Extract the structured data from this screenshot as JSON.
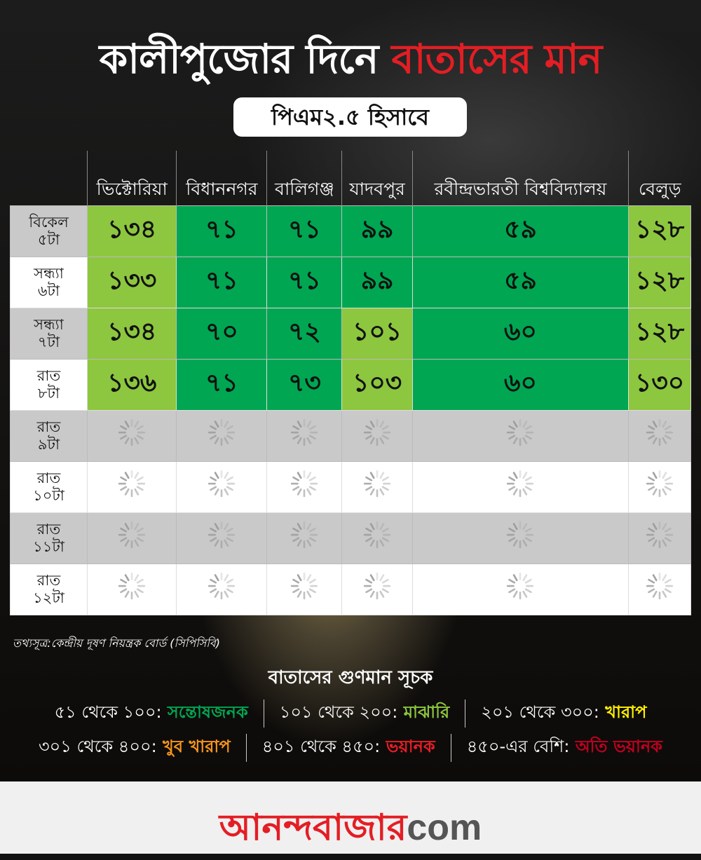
{
  "title": {
    "part1": "কালীপুজোর দিনে",
    "part2": "বাতাসের মান"
  },
  "subtitle": "পিএম২.৫ হিসাবে",
  "columns": [
    "ভিক্টোরিয়া",
    "বিধাননগর",
    "বালিগঞ্জ",
    "যাদবপুর",
    "রবীন্দ্রভারতী বিশ্ববিদ্যালয়",
    "বেলুড়"
  ],
  "colors": {
    "light_green": "#8dc63f",
    "dark_green": "#00a651",
    "title_red": "#e31e24"
  },
  "rows": [
    {
      "label": [
        "বিকেল",
        "৫টা"
      ],
      "values": [
        "১৩৪",
        "৭১",
        "৭১",
        "৯৯",
        "৫৯",
        "১২৮"
      ],
      "levels": [
        "L",
        "D",
        "D",
        "D",
        "D",
        "L"
      ]
    },
    {
      "label": [
        "সন্ধ্যা",
        "৬টা"
      ],
      "values": [
        "১৩৩",
        "৭১",
        "৭১",
        "৯৯",
        "৫৯",
        "১২৮"
      ],
      "levels": [
        "L",
        "D",
        "D",
        "D",
        "D",
        "L"
      ]
    },
    {
      "label": [
        "সন্ধ্যা",
        "৭টা"
      ],
      "values": [
        "১৩৪",
        "৭০",
        "৭২",
        "১০১",
        "৬০",
        "১২৮"
      ],
      "levels": [
        "L",
        "D",
        "D",
        "L",
        "D",
        "L"
      ]
    },
    {
      "label": [
        "রাত",
        "৮টা"
      ],
      "values": [
        "১৩৬",
        "৭১",
        "৭৩",
        "১০৩",
        "৬০",
        "১৩০"
      ],
      "levels": [
        "L",
        "D",
        "D",
        "L",
        "D",
        "L"
      ]
    },
    {
      "label": [
        "রাত",
        "৯টা"
      ],
      "values": null,
      "icon": "loading-spinner-icon"
    },
    {
      "label": [
        "রাত",
        "১০টা"
      ],
      "values": null,
      "icon": "loading-spinner-icon"
    },
    {
      "label": [
        "রাত",
        "১১টা"
      ],
      "values": null,
      "icon": "loading-spinner-icon"
    },
    {
      "label": [
        "রাত",
        "১২টা"
      ],
      "values": null,
      "icon": "loading-spinner-icon"
    }
  ],
  "source": "তথ্যসূত্র:কেন্দ্রীয় দূষণ নিয়ন্ত্রক বোর্ড (সিপিসিবি)",
  "legend": {
    "title": "বাতাসের গুণমান সূচক",
    "items": [
      {
        "range": "৫১ থেকে ১০০:",
        "label": "সন্তোষজনক",
        "color": "#00a651"
      },
      {
        "range": "১০১ থেকে ২০০:",
        "label": "মাঝারি",
        "color": "#8dc63f"
      },
      {
        "range": "২০১ থেকে ৩০০:",
        "label": "খারাপ",
        "color": "#fff200"
      },
      {
        "range": "৩০১ থেকে ৪০০:",
        "label": "খুব খারাপ",
        "color": "#f7941d"
      },
      {
        "range": "৪০১  থেকে ৪৫০:",
        "label": "ভয়ানক",
        "color": "#ed1c24"
      },
      {
        "range": "৪৫০-এর বেশি:",
        "label": "অতি ভয়ানক",
        "color": "#c1001f"
      }
    ]
  },
  "footer": {
    "logo_main": "আনন্দবাজার",
    "logo_suffix": "com"
  }
}
